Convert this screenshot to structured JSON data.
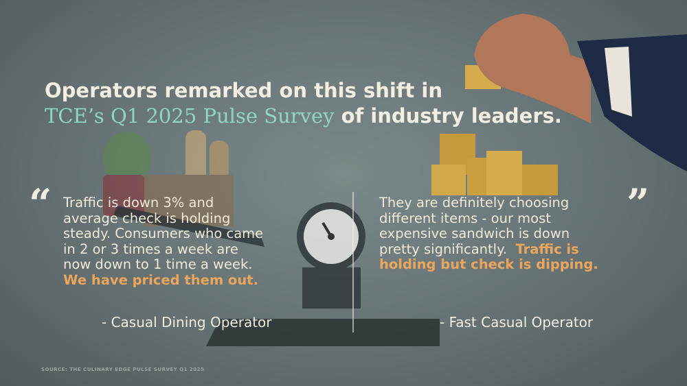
{
  "heading": {
    "line1": "Operators remarked on this shift in",
    "highlight": "TCE’s Q1 2025 Pulse Survey",
    "rest": "of industry leaders."
  },
  "open_quote": "“",
  "close_quote": "”",
  "quotes": [
    {
      "lines": [
        [
          {
            "text": "Traffic is down 3% and",
            "style": "plain"
          }
        ],
        [
          {
            "text": "average check is holding",
            "style": "plain"
          }
        ],
        [
          {
            "text": "steady. Consumers who came",
            "style": "plain"
          }
        ],
        [
          {
            "text": "in 2 or 3 times a week are",
            "style": "plain"
          }
        ],
        [
          {
            "text": "now down to 1 time a week.",
            "style": "plain"
          }
        ],
        [
          {
            "text": "We have priced them out.",
            "style": "emphasis"
          }
        ]
      ],
      "attribution": "- Casual Dining Operator"
    },
    {
      "lines": [
        [
          {
            "text": "They are definitely choosing",
            "style": "plain"
          }
        ],
        [
          {
            "text": "different items - our most",
            "style": "plain"
          }
        ],
        [
          {
            "text": "expensive sandwich is down",
            "style": "plain"
          }
        ],
        [
          {
            "text": "pretty significantly.",
            "style": "plain"
          },
          {
            "text": "Traffic is",
            "style": "emphasis"
          }
        ],
        [
          {
            "text": "holding but check is dipping.",
            "style": "emphasis"
          }
        ]
      ],
      "attribution": "- Fast Casual Operator"
    }
  ],
  "source": "SOURCE: THE CULINARY EDGE PULSE SURVEY Q1 2025"
}
